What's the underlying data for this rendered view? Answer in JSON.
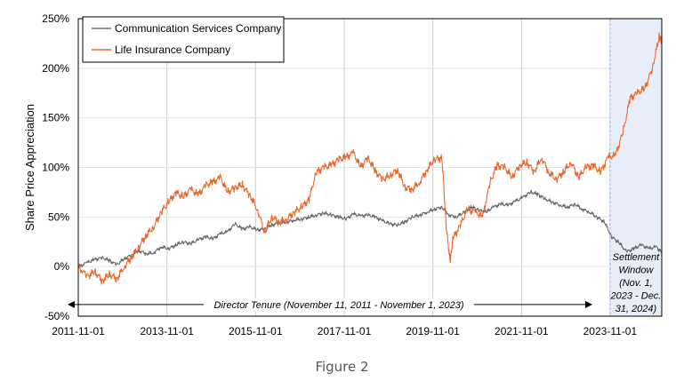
{
  "chart_data": {
    "type": "line",
    "ylabel": "Share Price Appreciation",
    "xlabel": "",
    "ylim": [
      -50,
      250
    ],
    "yticks": [
      "250%",
      "200%",
      "150%",
      "100%",
      "50%",
      "0%",
      "-50%"
    ],
    "ytick_values": [
      250,
      200,
      150,
      100,
      50,
      0,
      -50
    ],
    "xlim": [
      "2011-11-01",
      "2024-12-31"
    ],
    "xticks": [
      "2011-11-01",
      "2013-11-01",
      "2015-11-01",
      "2017-11-01",
      "2019-11-01",
      "2021-11-01",
      "2023-11-01"
    ],
    "grid": "vertical",
    "legend": "top-left",
    "series": [
      {
        "name": "Communication Services Company",
        "color": "#6b6b6b",
        "x": [
          "2011-11-01",
          "2012-01-15",
          "2012-03-15",
          "2012-05-15",
          "2012-07-15",
          "2012-09-15",
          "2012-11-15",
          "2013-01-15",
          "2013-03-15",
          "2013-05-15",
          "2013-07-15",
          "2013-09-15",
          "2013-11-15",
          "2014-01-15",
          "2014-03-15",
          "2014-05-15",
          "2014-07-15",
          "2014-09-15",
          "2014-11-15",
          "2015-01-15",
          "2015-03-15",
          "2015-05-15",
          "2015-07-15",
          "2015-09-15",
          "2015-11-15",
          "2016-01-15",
          "2016-03-15",
          "2016-05-15",
          "2016-07-15",
          "2016-09-15",
          "2016-11-15",
          "2017-01-15",
          "2017-03-15",
          "2017-05-15",
          "2017-07-15",
          "2017-09-15",
          "2017-11-15",
          "2018-01-15",
          "2018-03-15",
          "2018-05-15",
          "2018-07-15",
          "2018-09-15",
          "2018-11-15",
          "2019-01-15",
          "2019-03-15",
          "2019-05-15",
          "2019-07-15",
          "2019-09-15",
          "2019-11-15",
          "2020-01-15",
          "2020-03-15",
          "2020-05-15",
          "2020-07-15",
          "2020-09-15",
          "2020-11-15",
          "2021-01-15",
          "2021-03-15",
          "2021-05-15",
          "2021-07-15",
          "2021-09-15",
          "2021-11-15",
          "2022-01-15",
          "2022-03-15",
          "2022-05-15",
          "2022-07-15",
          "2022-09-15",
          "2022-11-15",
          "2023-01-15",
          "2023-03-15",
          "2023-05-15",
          "2023-07-15",
          "2023-09-15",
          "2023-11-15",
          "2024-01-15",
          "2024-03-15",
          "2024-05-15",
          "2024-07-15",
          "2024-09-15",
          "2024-11-15",
          "2024-12-31"
        ],
        "values": [
          0,
          4,
          7,
          9,
          6,
          2,
          8,
          12,
          16,
          13,
          14,
          20,
          18,
          22,
          25,
          23,
          27,
          30,
          28,
          33,
          35,
          43,
          38,
          40,
          37,
          38,
          42,
          44,
          45,
          47,
          48,
          50,
          52,
          54,
          52,
          50,
          48,
          53,
          51,
          52,
          50,
          46,
          43,
          42,
          45,
          50,
          52,
          55,
          58,
          60,
          52,
          50,
          55,
          60,
          57,
          55,
          60,
          63,
          62,
          66,
          70,
          75,
          73,
          68,
          65,
          62,
          60,
          63,
          58,
          55,
          50,
          45,
          30,
          24,
          15,
          18,
          22,
          18,
          20,
          14
        ]
      },
      {
        "name": "Life Insurance Company",
        "color": "#e8692d",
        "x": [
          "2011-11-01",
          "2012-01-15",
          "2012-03-15",
          "2012-05-15",
          "2012-07-15",
          "2012-09-15",
          "2012-11-15",
          "2013-01-15",
          "2013-03-15",
          "2013-05-15",
          "2013-07-15",
          "2013-09-15",
          "2013-11-15",
          "2014-01-15",
          "2014-03-15",
          "2014-05-15",
          "2014-07-15",
          "2014-09-15",
          "2014-11-15",
          "2015-01-15",
          "2015-03-15",
          "2015-05-15",
          "2015-07-15",
          "2015-09-15",
          "2015-11-15",
          "2016-01-15",
          "2016-03-15",
          "2016-05-15",
          "2016-07-15",
          "2016-09-15",
          "2016-11-15",
          "2017-01-15",
          "2017-03-15",
          "2017-05-15",
          "2017-07-15",
          "2017-09-15",
          "2017-11-15",
          "2018-01-15",
          "2018-03-15",
          "2018-05-15",
          "2018-07-15",
          "2018-09-15",
          "2018-11-15",
          "2019-01-15",
          "2019-03-15",
          "2019-05-15",
          "2019-07-15",
          "2019-09-15",
          "2019-11-15",
          "2020-01-15",
          "2020-02-20",
          "2020-03-23",
          "2020-04-15",
          "2020-06-15",
          "2020-08-15",
          "2020-10-15",
          "2020-12-15",
          "2021-02-15",
          "2021-04-15",
          "2021-06-15",
          "2021-08-15",
          "2021-10-15",
          "2021-12-15",
          "2022-02-15",
          "2022-04-15",
          "2022-06-15",
          "2022-08-15",
          "2022-10-15",
          "2022-12-15",
          "2023-02-15",
          "2023-04-15",
          "2023-06-15",
          "2023-08-15",
          "2023-10-15",
          "2023-12-15",
          "2024-02-15",
          "2024-04-15",
          "2024-06-15",
          "2024-08-15",
          "2024-10-15",
          "2024-12-10",
          "2024-12-31"
        ],
        "values": [
          0,
          -10,
          -5,
          -14,
          -8,
          -12,
          0,
          10,
          20,
          32,
          40,
          55,
          65,
          75,
          70,
          78,
          72,
          82,
          85,
          90,
          75,
          80,
          82,
          72,
          58,
          35,
          50,
          45,
          48,
          55,
          60,
          68,
          95,
          100,
          102,
          108,
          110,
          115,
          100,
          110,
          96,
          88,
          92,
          98,
          80,
          78,
          85,
          98,
          108,
          110,
          40,
          5,
          28,
          42,
          58,
          55,
          50,
          85,
          102,
          100,
          90,
          102,
          105,
          96,
          110,
          95,
          88,
          96,
          105,
          90,
          100,
          102,
          95,
          110,
          112,
          135,
          170,
          175,
          180,
          200,
          232,
          228
        ]
      }
    ],
    "shaded_region": {
      "start": "2023-11-01",
      "end": "2024-12-31",
      "label": "Settlement Window (Nov. 1, 2023 - Dec. 31, 2024)"
    },
    "annotations": [
      {
        "text": "Director Tenure (November 11, 2011 - November 1, 2023)",
        "start": "2011-11-11",
        "end": "2023-11-01",
        "y": -40
      }
    ]
  },
  "caption": "Figure 2"
}
